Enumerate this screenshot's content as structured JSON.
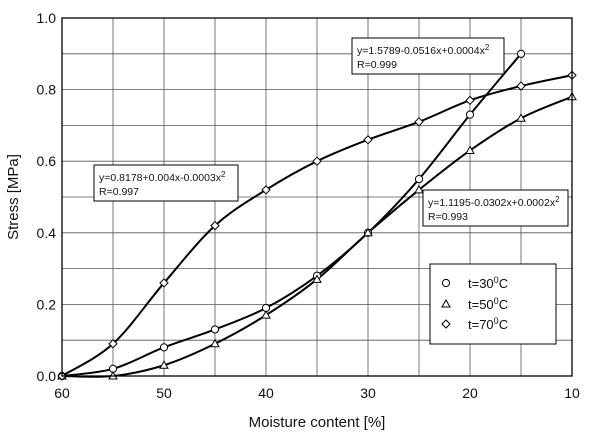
{
  "chart_data": {
    "type": "line",
    "xlabel": "Moisture content [%]",
    "ylabel": "Stress [MPa]",
    "xlim": [
      60,
      10
    ],
    "ylim": [
      0,
      1.0
    ],
    "x_ticks": [
      60,
      50,
      40,
      30,
      20,
      10
    ],
    "y_ticks": [
      "0.0",
      "0.2",
      "0.4",
      "0.6",
      "0.8",
      "1.0"
    ],
    "grid": true,
    "series": [
      {
        "name": "t=30⁰C",
        "marker": "circle",
        "x": [
          60,
          55,
          50,
          45,
          40,
          35,
          30,
          25,
          20,
          15
        ],
        "y": [
          0.0,
          0.02,
          0.08,
          0.13,
          0.19,
          0.28,
          0.4,
          0.55,
          0.73,
          0.9
        ]
      },
      {
        "name": "t=50⁰C",
        "marker": "triangle",
        "x": [
          60,
          55,
          50,
          45,
          40,
          35,
          30,
          25,
          20,
          15,
          10
        ],
        "y": [
          0.0,
          0.0,
          0.03,
          0.09,
          0.17,
          0.27,
          0.4,
          0.52,
          0.63,
          0.72,
          0.78
        ]
      },
      {
        "name": "t=70⁰C",
        "marker": "diamond",
        "x": [
          60,
          55,
          50,
          45,
          40,
          35,
          30,
          25,
          20,
          15,
          10
        ],
        "y": [
          0.0,
          0.09,
          0.26,
          0.42,
          0.52,
          0.6,
          0.66,
          0.71,
          0.77,
          0.81,
          0.84
        ]
      }
    ],
    "annotations": [
      {
        "id": "ann-30",
        "line1_pre": "y=1.5789-0.0516x+0.0004x",
        "line1_sup": "2",
        "line2": "R=0.999"
      },
      {
        "id": "ann-70",
        "line1_pre": "y=0.8178+0.004x-0.0003x",
        "line1_sup": "2",
        "line2": "R=0.997"
      },
      {
        "id": "ann-50",
        "line1_pre": "y=1.1195-0.0302x+0.0002x",
        "line1_sup": "2",
        "line2": "R=0.993"
      }
    ],
    "legend": {
      "placement": "lower-right",
      "entries": [
        {
          "pre": "t=30",
          "sup": "0",
          "post": "C",
          "marker": "circle"
        },
        {
          "pre": "t=50",
          "sup": "0",
          "post": "C",
          "marker": "triangle"
        },
        {
          "pre": "t=70",
          "sup": "0",
          "post": "C",
          "marker": "diamond"
        }
      ]
    }
  }
}
